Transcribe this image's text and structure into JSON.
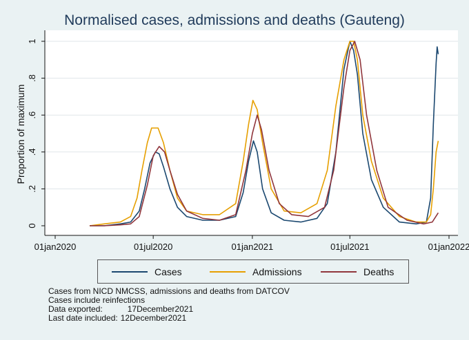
{
  "chart_data": {
    "type": "line",
    "title": "Normalised cases, admissions and deaths (Gauteng)",
    "xlabel": "",
    "ylabel": "Proportion of maximum",
    "xlim": [
      "2020-01-01",
      "2022-01-01"
    ],
    "ylim": [
      0,
      1
    ],
    "x_ticks": [
      "01jan2020",
      "01jul2020",
      "01jan2021",
      "01jul2021",
      "01jan2022"
    ],
    "y_ticks": [
      "0",
      ".2",
      ".4",
      ".6",
      ".8",
      "1"
    ],
    "grid": "horizontal",
    "legend_position": "bottom",
    "series": [
      {
        "name": "Cases",
        "color": "#1a476f",
        "points": [
          [
            "2020-03-05",
            0
          ],
          [
            "2020-04-01",
            0
          ],
          [
            "2020-05-01",
            0.01
          ],
          [
            "2020-05-20",
            0.02
          ],
          [
            "2020-06-05",
            0.08
          ],
          [
            "2020-06-15",
            0.2
          ],
          [
            "2020-06-25",
            0.34
          ],
          [
            "2020-07-05",
            0.4
          ],
          [
            "2020-07-12",
            0.39
          ],
          [
            "2020-07-20",
            0.32
          ],
          [
            "2020-08-01",
            0.2
          ],
          [
            "2020-08-15",
            0.1
          ],
          [
            "2020-09-01",
            0.05
          ],
          [
            "2020-10-01",
            0.03
          ],
          [
            "2020-11-01",
            0.03
          ],
          [
            "2020-12-01",
            0.05
          ],
          [
            "2020-12-15",
            0.18
          ],
          [
            "2020-12-25",
            0.35
          ],
          [
            "2021-01-03",
            0.46
          ],
          [
            "2021-01-10",
            0.4
          ],
          [
            "2021-01-20",
            0.2
          ],
          [
            "2021-02-05",
            0.07
          ],
          [
            "2021-03-01",
            0.03
          ],
          [
            "2021-04-01",
            0.02
          ],
          [
            "2021-05-01",
            0.04
          ],
          [
            "2021-05-20",
            0.12
          ],
          [
            "2021-06-05",
            0.4
          ],
          [
            "2021-06-20",
            0.85
          ],
          [
            "2021-07-01",
            1.0
          ],
          [
            "2021-07-08",
            0.95
          ],
          [
            "2021-07-15",
            0.82
          ],
          [
            "2021-07-25",
            0.5
          ],
          [
            "2021-08-10",
            0.25
          ],
          [
            "2021-09-01",
            0.1
          ],
          [
            "2021-10-01",
            0.02
          ],
          [
            "2021-11-01",
            0.01
          ],
          [
            "2021-11-20",
            0.02
          ],
          [
            "2021-11-28",
            0.15
          ],
          [
            "2021-12-03",
            0.55
          ],
          [
            "2021-12-08",
            0.88
          ],
          [
            "2021-12-10",
            0.97
          ],
          [
            "2021-12-12",
            0.93
          ]
        ]
      },
      {
        "name": "Admissions",
        "color": "#e69f00",
        "points": [
          [
            "2020-03-05",
            0
          ],
          [
            "2020-04-01",
            0.01
          ],
          [
            "2020-05-01",
            0.02
          ],
          [
            "2020-05-20",
            0.05
          ],
          [
            "2020-06-01",
            0.15
          ],
          [
            "2020-06-10",
            0.3
          ],
          [
            "2020-06-20",
            0.45
          ],
          [
            "2020-06-28",
            0.53
          ],
          [
            "2020-07-10",
            0.53
          ],
          [
            "2020-07-20",
            0.45
          ],
          [
            "2020-08-01",
            0.3
          ],
          [
            "2020-08-15",
            0.15
          ],
          [
            "2020-09-01",
            0.08
          ],
          [
            "2020-10-01",
            0.06
          ],
          [
            "2020-11-01",
            0.06
          ],
          [
            "2020-12-01",
            0.12
          ],
          [
            "2020-12-15",
            0.35
          ],
          [
            "2020-12-25",
            0.55
          ],
          [
            "2021-01-02",
            0.68
          ],
          [
            "2021-01-10",
            0.63
          ],
          [
            "2021-01-20",
            0.45
          ],
          [
            "2021-02-05",
            0.2
          ],
          [
            "2021-03-01",
            0.08
          ],
          [
            "2021-04-01",
            0.07
          ],
          [
            "2021-05-01",
            0.12
          ],
          [
            "2021-05-20",
            0.3
          ],
          [
            "2021-06-05",
            0.65
          ],
          [
            "2021-06-20",
            0.9
          ],
          [
            "2021-07-01",
            1.0
          ],
          [
            "2021-07-08",
            1.0
          ],
          [
            "2021-07-15",
            0.9
          ],
          [
            "2021-07-25",
            0.6
          ],
          [
            "2021-08-10",
            0.35
          ],
          [
            "2021-09-01",
            0.15
          ],
          [
            "2021-10-01",
            0.05
          ],
          [
            "2021-11-01",
            0.02
          ],
          [
            "2021-11-20",
            0.02
          ],
          [
            "2021-11-28",
            0.06
          ],
          [
            "2021-12-03",
            0.2
          ],
          [
            "2021-12-08",
            0.4
          ],
          [
            "2021-12-12",
            0.46
          ]
        ]
      },
      {
        "name": "Deaths",
        "color": "#90353b",
        "points": [
          [
            "2020-03-05",
            0
          ],
          [
            "2020-04-01",
            0
          ],
          [
            "2020-05-01",
            0.005
          ],
          [
            "2020-05-20",
            0.01
          ],
          [
            "2020-06-05",
            0.05
          ],
          [
            "2020-06-20",
            0.22
          ],
          [
            "2020-07-01",
            0.38
          ],
          [
            "2020-07-12",
            0.43
          ],
          [
            "2020-07-22",
            0.4
          ],
          [
            "2020-08-01",
            0.3
          ],
          [
            "2020-08-15",
            0.17
          ],
          [
            "2020-09-01",
            0.08
          ],
          [
            "2020-10-01",
            0.04
          ],
          [
            "2020-11-01",
            0.03
          ],
          [
            "2020-12-01",
            0.06
          ],
          [
            "2020-12-20",
            0.3
          ],
          [
            "2021-01-01",
            0.5
          ],
          [
            "2021-01-10",
            0.6
          ],
          [
            "2021-01-18",
            0.52
          ],
          [
            "2021-02-01",
            0.3
          ],
          [
            "2021-02-20",
            0.12
          ],
          [
            "2021-03-15",
            0.06
          ],
          [
            "2021-04-15",
            0.05
          ],
          [
            "2021-05-15",
            0.1
          ],
          [
            "2021-06-01",
            0.3
          ],
          [
            "2021-06-20",
            0.75
          ],
          [
            "2021-07-01",
            0.95
          ],
          [
            "2021-07-10",
            1.0
          ],
          [
            "2021-07-20",
            0.9
          ],
          [
            "2021-08-01",
            0.6
          ],
          [
            "2021-08-20",
            0.3
          ],
          [
            "2021-09-10",
            0.1
          ],
          [
            "2021-10-15",
            0.03
          ],
          [
            "2021-11-15",
            0.01
          ],
          [
            "2021-12-01",
            0.02
          ],
          [
            "2021-12-12",
            0.07
          ]
        ]
      }
    ]
  },
  "notes": {
    "line1": "Cases from NICD NMCSS, admissions and deaths from DATCOV",
    "line2": "Cases include reinfections",
    "line3_label": "Data exported:",
    "line3_value": "17December2021",
    "line4_label": "Last date included:",
    "line4_value": "12December2021"
  }
}
